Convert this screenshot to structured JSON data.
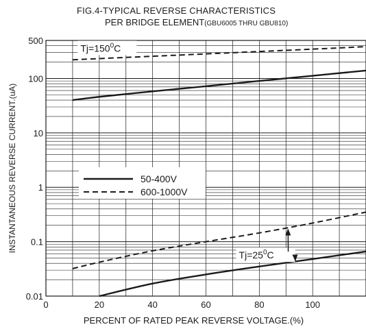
{
  "title_line1": "FIG.4-TYPICAL REVERSE CHARACTERISTICS",
  "title_line2_main": "PER  BRIDGE ELEMENT",
  "title_line2_paren": "(GBU6005 THRU GBU810)",
  "chart_data": {
    "type": "line",
    "title": "FIG.4-TYPICAL REVERSE CHARACTERISTICS PER BRIDGE ELEMENT (GBU6005 THRU GBU810)",
    "xlabel": "PERCENT OF RATED PEAK REVERSE VOLTAGE.(%)",
    "ylabel": "INSTANTANEOUS REVERSE CURRENT.(uA)",
    "xlim": [
      0,
      120
    ],
    "ylim": [
      0.01,
      500
    ],
    "yscale": "log",
    "grid": true,
    "x_ticks": [
      0,
      20,
      40,
      60,
      80,
      100
    ],
    "x_tick_labels": [
      "0",
      "20",
      "40",
      "60",
      "80",
      "100"
    ],
    "y_ticks": [
      0.01,
      0.1,
      1,
      10,
      100,
      500
    ],
    "y_tick_labels": [
      "0.01",
      "0.1",
      "1",
      "10",
      "100",
      "500"
    ],
    "legend": {
      "position": "center-left",
      "entries": [
        {
          "label": "50-400V",
          "style": "solid"
        },
        {
          "label": "600-1000V",
          "style": "dashed"
        }
      ]
    },
    "annotations": [
      {
        "text_main": "Tj=150",
        "text_sup": "0",
        "text_unit": "C",
        "x": 15,
        "y": 370
      },
      {
        "text_main": "Tj=25",
        "text_sup": "0",
        "text_unit": "C",
        "x": 78,
        "y": 0.052
      }
    ],
    "series": [
      {
        "name": "50-400V",
        "condition": "Tj=150°C",
        "style": "solid",
        "x": [
          10,
          20,
          40,
          60,
          80,
          100,
          120
        ],
        "y": [
          40,
          46,
          58,
          72,
          90,
          112,
          140
        ]
      },
      {
        "name": "600-1000V",
        "condition": "Tj=150°C",
        "style": "dashed",
        "x": [
          10,
          20,
          40,
          60,
          80,
          100,
          120
        ],
        "y": [
          220,
          232,
          256,
          283,
          313,
          346,
          385
        ]
      },
      {
        "name": "50-400V",
        "condition": "Tj=25°C",
        "style": "solid",
        "x": [
          20,
          40,
          60,
          80,
          100,
          120
        ],
        "y": [
          0.01,
          0.017,
          0.025,
          0.035,
          0.048,
          0.066
        ]
      },
      {
        "name": "600-1000V",
        "condition": "Tj=25°C",
        "style": "dashed",
        "x": [
          10,
          20,
          40,
          60,
          80,
          100,
          120
        ],
        "y": [
          0.032,
          0.042,
          0.068,
          0.1,
          0.145,
          0.22,
          0.35
        ]
      }
    ]
  }
}
